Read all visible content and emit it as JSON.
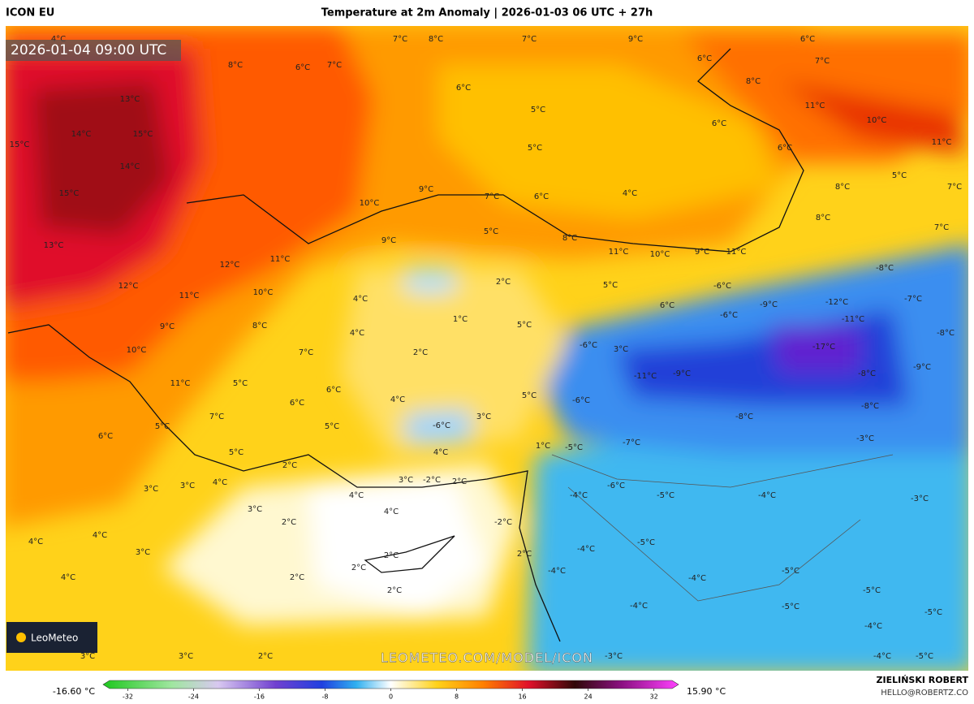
{
  "header": {
    "model": "ICON EU",
    "title": "Temperature at 2m Anomaly | 2026-01-03 06 UTC + 27h"
  },
  "map": {
    "valid_time": "2026-01-04 09:00 UTC",
    "watermark": "LEOMETEO.COM/MODEL/ICON",
    "logo": "LeoMeteo",
    "labels": [
      "4°C",
      "7°C",
      "8°C",
      "7°C",
      "9°C",
      "6°C",
      "8°C",
      "6°C",
      "7°C",
      "6°C",
      "7°C",
      "13°C",
      "6°C",
      "8°C",
      "11°C",
      "14°C",
      "15°C",
      "5°C",
      "6°C",
      "10°C",
      "15°C",
      "5°C",
      "6°C",
      "11°C",
      "14°C",
      "4°C",
      "5°C",
      "15°C",
      "9°C",
      "7°C",
      "6°C",
      "8°C",
      "7°C",
      "10°C",
      "8°C",
      "13°C",
      "5°C",
      "8°C",
      "9°C",
      "11°C",
      "10°C",
      "9°C",
      "11°C",
      "7°C",
      "12°C",
      "11°C",
      "-8°C",
      "12°C",
      "2°C",
      "5°C",
      "-6°C",
      "11°C",
      "10°C",
      "4°C",
      "6°C",
      "-9°C",
      "-12°C",
      "-7°C",
      "1°C",
      "-6°C",
      "-11°C",
      "9°C",
      "8°C",
      "4°C",
      "5°C",
      "-8°C",
      "-17°C",
      "10°C",
      "7°C",
      "2°C",
      "3°C",
      "-6°C",
      "-11°C",
      "-9°C",
      "-8°C",
      "-9°C",
      "11°C",
      "5°C",
      "6°C",
      "4°C",
      "5°C",
      "-6°C",
      "-8°C",
      "-8°C",
      "6°C",
      "7°C",
      "5°C",
      "5°C",
      "-6°C",
      "3°C",
      "6°C",
      "1°C",
      "-5°C",
      "-7°C",
      "-3°C",
      "5°C",
      "4°C",
      "2°C",
      "3°C",
      "-2°C",
      "2°C",
      "3°C",
      "3°C",
      "4°C",
      "-6°C",
      "-5°C",
      "-4°C",
      "-4°C",
      "4°C",
      "-3°C",
      "3°C",
      "4°C",
      "-2°C",
      "2°C",
      "4°C",
      "4°C",
      "-5°C",
      "3°C",
      "-4°C",
      "2°C",
      "2°C",
      "2°C",
      "-4°C",
      "4°C",
      "2°C",
      "-4°C",
      "-5°C",
      "2°C",
      "-5°C",
      "-4°C",
      "-5°C",
      "-5°C",
      "-4°C",
      "-3°C",
      "3°C",
      "3°C",
      "2°C",
      "-4°C",
      "-5°C"
    ]
  },
  "colorbar": {
    "min_label": "-16.60 °C",
    "max_label": "15.90 °C",
    "lim": [
      -35,
      35
    ],
    "ticks": [
      -32,
      -24,
      -16,
      -8,
      0,
      8,
      16,
      24,
      32
    ]
  },
  "credit": {
    "author": "ZIELIŃSKI ROBERT",
    "contact": "HELLO@ROBERTZ.CO"
  }
}
